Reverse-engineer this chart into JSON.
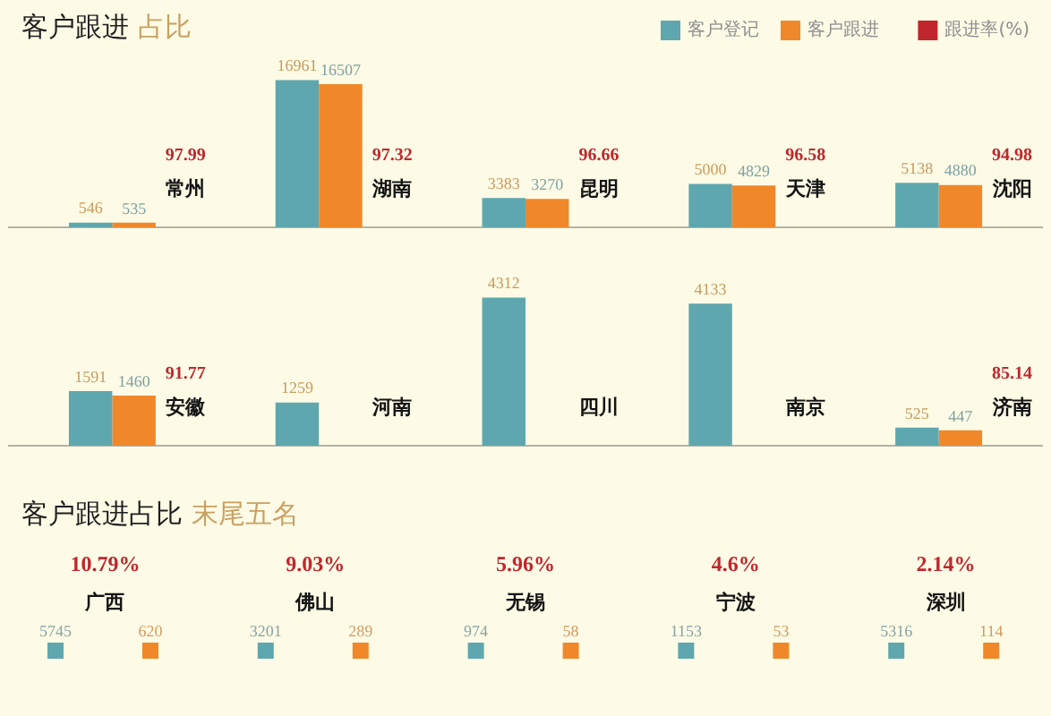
{
  "chart_data": [
    {
      "type": "bar",
      "title": "客户跟进",
      "subtitle": "占比",
      "categories": [
        "常州",
        "湖南",
        "昆明",
        "天津",
        "沈阳"
      ],
      "series": [
        {
          "name": "客户登记",
          "color": "#5fa7ae",
          "values": [
            546,
            16961,
            3383,
            5000,
            5138
          ]
        },
        {
          "name": "客户跟进",
          "color": "#f0882a",
          "values": [
            535,
            16507,
            3270,
            4829,
            4880
          ]
        }
      ],
      "data_labels": true,
      "legend": "top right"
    },
    {
      "type": "other",
      "series": [
        {
          "name": "跟进率(%)",
          "color": "#c0272d",
          "values": [
            97.99,
            97.32,
            96.66,
            96.58,
            94.98
          ]
        }
      ],
      "data_labels": true,
      "legend": "top right"
    },
    {
      "type": "bar",
      "categories": [
        "安徽",
        "河南",
        "四川",
        "南京",
        "济南"
      ],
      "series": [
        {
          "color": "#5fa7ae",
          "values": [
            1591,
            1259,
            4312,
            4133,
            525
          ]
        },
        {
          "color": "#f0882a",
          "values": [
            1460,
            null,
            null,
            null,
            447
          ]
        }
      ],
      "data_labels": true
    },
    {
      "type": "other",
      "series": [
        {
          "color": "#c0272d",
          "values": [
            91.77,
            null,
            null,
            null,
            85.14
          ]
        }
      ],
      "data_labels": true
    },
    {
      "type": "other",
      "title": "客户跟进占比",
      "subtitle": "末尾五名",
      "categories": [
        "广西",
        "佛山",
        "无锡",
        "宁波",
        "深圳"
      ],
      "series": [
        {
          "color": "#5fa7ae",
          "marker": "square",
          "values": [
            5745,
            3201,
            974,
            1153,
            5316
          ]
        },
        {
          "color": "#f0882a",
          "marker": "square",
          "values": [
            620,
            289,
            58,
            53,
            114
          ]
        },
        {
          "color": "#c0272d",
          "values": [
            10.79,
            9.03,
            5.96,
            4.6,
            2.14
          ],
          "value_labels": [
            "10.79%",
            "9.03%",
            "5.96%",
            "4.6%",
            "2.14%"
          ]
        }
      ],
      "data_labels": true
    }
  ]
}
